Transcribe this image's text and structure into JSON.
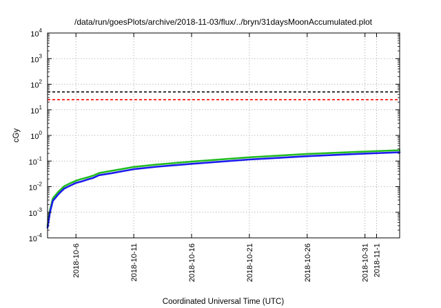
{
  "chart_data": {
    "type": "line",
    "title": "/data/run/goesPlots/archive/2018-11-03/flux/../bryn/31daysMoonAccumulated.plot",
    "xlabel": "Coordinated Universal Time (UTC)",
    "ylabel": "cGy",
    "yscale": "log",
    "ylim": [
      0.0001,
      10000
    ],
    "xlim": [
      "2018-10-03T13:00",
      "2018-11-03T00:00"
    ],
    "grid": true,
    "x_ticks": [
      {
        "date": "2018-10-06",
        "label": "2018-10-6"
      },
      {
        "date": "2018-10-11",
        "label": "2018-10-11"
      },
      {
        "date": "2018-10-16",
        "label": "2018-10-16"
      },
      {
        "date": "2018-10-21",
        "label": "2018-10-21"
      },
      {
        "date": "2018-10-26",
        "label": "2018-10-26"
      },
      {
        "date": "2018-10-31",
        "label": "2018-10-31"
      },
      {
        "date": "2018-11-01",
        "label": "2018-11-1"
      }
    ],
    "y_ticks": [
      {
        "value": 0.0001,
        "base": "10",
        "exp": "-4"
      },
      {
        "value": 0.001,
        "base": "10",
        "exp": "-3"
      },
      {
        "value": 0.01,
        "base": "10",
        "exp": "-2"
      },
      {
        "value": 0.1,
        "base": "10",
        "exp": "-1"
      },
      {
        "value": 1,
        "base": "10",
        "exp": "0"
      },
      {
        "value": 10,
        "base": "10",
        "exp": "1"
      },
      {
        "value": 100,
        "base": "10",
        "exp": "2"
      },
      {
        "value": 1000,
        "base": "10",
        "exp": "3"
      },
      {
        "value": 10000,
        "base": "10",
        "exp": "4"
      }
    ],
    "reference_lines": [
      {
        "value": 50,
        "color": "#000000",
        "style": "dashed"
      },
      {
        "value": 25,
        "color": "#ff0000",
        "style": "dashed"
      }
    ],
    "series": [
      {
        "color": "#22bb22",
        "x": [
          "2018-10-03T13:00",
          "2018-10-03T18:00",
          "2018-10-04T00:00",
          "2018-10-04T06:00",
          "2018-10-04T12:00",
          "2018-10-05T00:00",
          "2018-10-05T12:00",
          "2018-10-06T00:00",
          "2018-10-06T12:00",
          "2018-10-07T00:00",
          "2018-10-07T12:00",
          "2018-10-08T00:00",
          "2018-10-09T00:00",
          "2018-10-10T00:00",
          "2018-10-11T00:00",
          "2018-10-13T00:00",
          "2018-10-16T00:00",
          "2018-10-21T00:00",
          "2018-10-26T00:00",
          "2018-10-31T00:00",
          "2018-11-03T00:00"
        ],
        "y": [
          0.0003,
          0.0012,
          0.0035,
          0.0048,
          0.0065,
          0.0105,
          0.0135,
          0.017,
          0.02,
          0.023,
          0.027,
          0.034,
          0.041,
          0.049,
          0.059,
          0.073,
          0.095,
          0.14,
          0.19,
          0.235,
          0.265
        ]
      },
      {
        "color": "#1a1aee",
        "x": [
          "2018-10-03T13:00",
          "2018-10-03T18:00",
          "2018-10-04T00:00",
          "2018-10-04T06:00",
          "2018-10-04T12:00",
          "2018-10-05T00:00",
          "2018-10-05T12:00",
          "2018-10-06T00:00",
          "2018-10-06T12:00",
          "2018-10-07T00:00",
          "2018-10-07T12:00",
          "2018-10-08T00:00",
          "2018-10-09T00:00",
          "2018-10-10T00:00",
          "2018-10-11T00:00",
          "2018-10-13T00:00",
          "2018-10-16T00:00",
          "2018-10-21T00:00",
          "2018-10-26T00:00",
          "2018-10-31T00:00",
          "2018-11-03T00:00"
        ],
        "y": [
          0.00025,
          0.001,
          0.0028,
          0.0038,
          0.0052,
          0.0085,
          0.011,
          0.014,
          0.016,
          0.019,
          0.022,
          0.028,
          0.033,
          0.04,
          0.048,
          0.06,
          0.078,
          0.115,
          0.155,
          0.195,
          0.22
        ]
      }
    ]
  }
}
